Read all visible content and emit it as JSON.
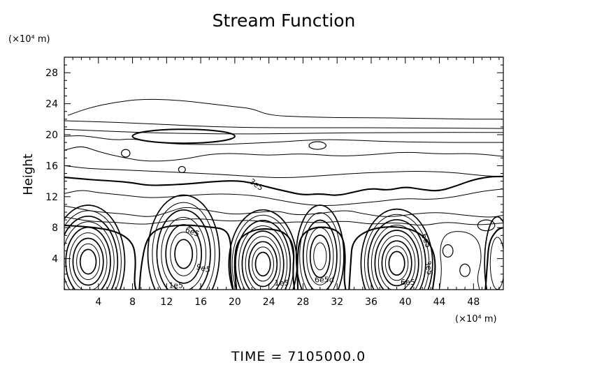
{
  "chart_data": {
    "type": "contour",
    "title": "Stream Function",
    "xlabel": "",
    "ylabel": "Height",
    "x_unit": "(×10⁴ m)",
    "y_unit": "(×10⁴ m)",
    "xlim": [
      0,
      51.5
    ],
    "ylim": [
      0,
      30
    ],
    "xticks": [
      4,
      8,
      12,
      16,
      20,
      24,
      28,
      32,
      36,
      40,
      44,
      48
    ],
    "yticks": [
      4,
      8,
      12,
      16,
      20,
      24,
      28
    ],
    "contour_labels": [
      {
        "text": "3e5",
        "x": 22.5,
        "y": 13.5,
        "angle": 35
      },
      {
        "text": "6e5",
        "x": 15.0,
        "y": 7.4,
        "angle": 20
      },
      {
        "text": "9e5",
        "x": 16.3,
        "y": 2.7,
        "angle": 15
      },
      {
        "text": "1e5",
        "x": 13.1,
        "y": 0.5,
        "angle": 0
      },
      {
        "text": "1e5",
        "x": 25.5,
        "y": 0.8,
        "angle": 0
      },
      {
        "text": "6e5d",
        "x": 30.5,
        "y": 1.2,
        "angle": 0
      },
      {
        "text": "6e5",
        "x": 42.4,
        "y": 6.3,
        "angle": 70
      },
      {
        "text": "3e5",
        "x": 42.7,
        "y": 2.8,
        "angle": 80
      },
      {
        "text": "6e5",
        "x": 40.3,
        "y": 0.9,
        "angle": 0
      }
    ],
    "vortices": [
      {
        "cx": 2.8,
        "cy": 3.6,
        "rx": 4.3,
        "ry": 7.3,
        "rings": 9
      },
      {
        "cx": 14.0,
        "cy": 4.6,
        "rx": 4.2,
        "ry": 7.6,
        "rings": 7
      },
      {
        "cx": 23.3,
        "cy": 3.3,
        "rx": 4.0,
        "ry": 7.0,
        "rings": 9
      },
      {
        "cx": 30.0,
        "cy": 4.3,
        "rx": 2.8,
        "ry": 6.6,
        "rings": 6
      },
      {
        "cx": 39.0,
        "cy": 3.4,
        "rx": 4.2,
        "ry": 7.0,
        "rings": 9
      },
      {
        "cx": 50.8,
        "cy": 3.4,
        "rx": 1.5,
        "ry": 6.0,
        "rings": 2
      }
    ],
    "cells": [
      {
        "cx": 14.0,
        "cy": 19.8,
        "rx": 6.0,
        "ry": 0.9
      },
      {
        "cx": 29.7,
        "cy": 18.6,
        "rx": 1.0,
        "ry": 0.5
      },
      {
        "cx": 13.8,
        "cy": 15.5,
        "rx": 0.4,
        "ry": 0.4
      },
      {
        "cx": 7.2,
        "cy": 17.6,
        "rx": 0.5,
        "ry": 0.5
      },
      {
        "cx": 45.0,
        "cy": 5.0,
        "rx": 0.6,
        "ry": 0.8
      },
      {
        "cx": 47.0,
        "cy": 2.5,
        "rx": 0.6,
        "ry": 0.8
      },
      {
        "cx": 49.5,
        "cy": 8.3,
        "rx": 1.0,
        "ry": 0.7
      }
    ],
    "contours": [
      {
        "weight": "thin",
        "points": [
          [
            0.4,
            22.5
          ],
          [
            3,
            23.5
          ],
          [
            6,
            24.2
          ],
          [
            9,
            24.6
          ],
          [
            13,
            24.5
          ],
          [
            17,
            24.0
          ],
          [
            20,
            23.6
          ],
          [
            22,
            23.4
          ],
          [
            24,
            22.5
          ],
          [
            28,
            22.3
          ],
          [
            32,
            22.2
          ],
          [
            36,
            22.2
          ],
          [
            42,
            22.1
          ],
          [
            48,
            22.0
          ],
          [
            51.5,
            22.0
          ]
        ]
      },
      {
        "weight": "thin",
        "points": [
          [
            0,
            21.8
          ],
          [
            6,
            21.6
          ],
          [
            12,
            21.3
          ],
          [
            18,
            21.0
          ],
          [
            24,
            20.9
          ],
          [
            30,
            20.9
          ],
          [
            40,
            20.9
          ],
          [
            51.5,
            20.8
          ]
        ]
      },
      {
        "weight": "thin",
        "points": [
          [
            0,
            20.7
          ],
          [
            6,
            20.4
          ],
          [
            12,
            20.2
          ],
          [
            18,
            20.1
          ],
          [
            24,
            20.1
          ],
          [
            30,
            20.2
          ],
          [
            40,
            20.3
          ],
          [
            51.5,
            20.3
          ]
        ]
      },
      {
        "weight": "thin",
        "points": [
          [
            0,
            19.8
          ],
          [
            2,
            19.9
          ],
          [
            4,
            19.6
          ],
          [
            6,
            19.3
          ],
          [
            8,
            19.5
          ],
          [
            12,
            18.8
          ],
          [
            18,
            18.7
          ],
          [
            22,
            18.9
          ],
          [
            26,
            19.1
          ],
          [
            30,
            19.4
          ],
          [
            34,
            19.3
          ],
          [
            38,
            19.1
          ],
          [
            44,
            19.0
          ],
          [
            51.5,
            19.0
          ]
        ]
      },
      {
        "weight": "thin",
        "points": [
          [
            0,
            18.0
          ],
          [
            2,
            18.6
          ],
          [
            4,
            17.8
          ],
          [
            7,
            17.0
          ],
          [
            10,
            16.5
          ],
          [
            14,
            16.8
          ],
          [
            17,
            17.5
          ],
          [
            20,
            17.6
          ],
          [
            24,
            17.3
          ],
          [
            28,
            17.6
          ],
          [
            32,
            17.2
          ],
          [
            36,
            17.4
          ],
          [
            40,
            17.8
          ],
          [
            44,
            17.5
          ],
          [
            48,
            17.6
          ],
          [
            51.5,
            17.2
          ]
        ]
      },
      {
        "weight": "thin",
        "points": [
          [
            0,
            16.0
          ],
          [
            3,
            15.6
          ],
          [
            6,
            15.5
          ],
          [
            10,
            15.3
          ],
          [
            14,
            15.1
          ],
          [
            18,
            14.9
          ],
          [
            22,
            14.6
          ],
          [
            26,
            14.4
          ],
          [
            30,
            14.7
          ],
          [
            34,
            15.0
          ],
          [
            38,
            15.2
          ],
          [
            42,
            15.3
          ],
          [
            46,
            15.1
          ],
          [
            49,
            14.7
          ],
          [
            51.5,
            14.6
          ]
        ]
      },
      {
        "weight": "thick",
        "points": [
          [
            0,
            14.5
          ],
          [
            3,
            14.2
          ],
          [
            6,
            14.0
          ],
          [
            8,
            13.8
          ],
          [
            10,
            13.4
          ],
          [
            14,
            13.6
          ],
          [
            17,
            13.9
          ],
          [
            20,
            14.1
          ],
          [
            22,
            13.8
          ],
          [
            24,
            13.2
          ],
          [
            26,
            12.7
          ],
          [
            28,
            12.2
          ],
          [
            30,
            12.4
          ],
          [
            32,
            12.1
          ],
          [
            34,
            12.6
          ],
          [
            36,
            13.1
          ],
          [
            38,
            12.8
          ],
          [
            40,
            13.3
          ],
          [
            42,
            12.9
          ],
          [
            44,
            12.7
          ],
          [
            46,
            13.4
          ],
          [
            48,
            14.2
          ],
          [
            50,
            14.6
          ],
          [
            51.5,
            14.6
          ]
        ]
      },
      {
        "weight": "thin",
        "points": [
          [
            0,
            12.4
          ],
          [
            2,
            12.9
          ],
          [
            4,
            12.5
          ],
          [
            7,
            12.2
          ],
          [
            10,
            11.8
          ],
          [
            14,
            12.1
          ],
          [
            18,
            12.4
          ],
          [
            22,
            12.2
          ],
          [
            25,
            11.6
          ],
          [
            28,
            11.0
          ],
          [
            31,
            10.8
          ],
          [
            34,
            11.1
          ],
          [
            37,
            11.4
          ],
          [
            40,
            11.8
          ],
          [
            43,
            11.6
          ],
          [
            46,
            12.0
          ],
          [
            49,
            12.7
          ],
          [
            51.5,
            13.0
          ]
        ]
      },
      {
        "weight": "thin",
        "points": [
          [
            0,
            10.8
          ],
          [
            2,
            10.4
          ],
          [
            4,
            10.0
          ],
          [
            7,
            9.8
          ],
          [
            10,
            9.3
          ],
          [
            12,
            9.9
          ],
          [
            14,
            10.7
          ],
          [
            16,
            10.4
          ],
          [
            18,
            10.0
          ],
          [
            20,
            9.7
          ],
          [
            22,
            9.9
          ],
          [
            25,
            10.2
          ],
          [
            27,
            9.6
          ],
          [
            30,
            9.8
          ],
          [
            33,
            10.3
          ],
          [
            35,
            9.8
          ],
          [
            38,
            9.3
          ],
          [
            41,
            9.8
          ],
          [
            44,
            10.0
          ],
          [
            47,
            9.6
          ],
          [
            50,
            9.3
          ],
          [
            51.5,
            9.6
          ]
        ]
      },
      {
        "weight": "thin",
        "points": [
          [
            0,
            9.4
          ],
          [
            3,
            8.8
          ],
          [
            6,
            8.7
          ],
          [
            9,
            8.4
          ],
          [
            11,
            8.6
          ],
          [
            13,
            9.0
          ],
          [
            16,
            9.2
          ],
          [
            19,
            8.8
          ],
          [
            22,
            9.0
          ],
          [
            25,
            8.5
          ],
          [
            27,
            8.8
          ],
          [
            30,
            8.6
          ],
          [
            33,
            8.9
          ],
          [
            36,
            8.4
          ],
          [
            39,
            8.7
          ],
          [
            42,
            8.2
          ],
          [
            45,
            8.8
          ],
          [
            48,
            8.3
          ],
          [
            51.5,
            8.6
          ]
        ]
      },
      {
        "weight": "thick",
        "points": [
          [
            0,
            8.3
          ],
          [
            3,
            8.1
          ],
          [
            6,
            7.6
          ],
          [
            8,
            6.2
          ],
          [
            8.4,
            4.0
          ],
          [
            8.2,
            1.0
          ],
          [
            8.4,
            0
          ]
        ]
      },
      {
        "weight": "thick",
        "points": [
          [
            8.8,
            0
          ],
          [
            9.0,
            3.0
          ],
          [
            9.6,
            6.5
          ],
          [
            11,
            8.0
          ],
          [
            14,
            8.4
          ],
          [
            17,
            8.1
          ],
          [
            19,
            7.8
          ],
          [
            19.6,
            6.0
          ],
          [
            19.4,
            3.0
          ],
          [
            19.8,
            0
          ]
        ]
      },
      {
        "weight": "thick",
        "points": [
          [
            20.2,
            0
          ],
          [
            19.9,
            3.5
          ],
          [
            20.3,
            6.4
          ],
          [
            22,
            7.7
          ],
          [
            24,
            7.9
          ],
          [
            26,
            7.4
          ],
          [
            27.0,
            5.5
          ],
          [
            26.8,
            2.0
          ],
          [
            27.0,
            0
          ]
        ]
      },
      {
        "weight": "thick",
        "points": [
          [
            27.4,
            0
          ],
          [
            27.3,
            3.5
          ],
          [
            27.6,
            6.8
          ],
          [
            29,
            8.0
          ],
          [
            31,
            8.1
          ],
          [
            32.6,
            7.2
          ],
          [
            33.0,
            4.5
          ],
          [
            32.8,
            1.5
          ],
          [
            33.0,
            0
          ]
        ]
      },
      {
        "weight": "thick",
        "points": [
          [
            33.4,
            0
          ],
          [
            33.6,
            3.5
          ],
          [
            33.8,
            6.4
          ],
          [
            36,
            7.9
          ],
          [
            39,
            8.2
          ],
          [
            41.6,
            7.5
          ],
          [
            43.2,
            5.5
          ],
          [
            43.6,
            3.0
          ],
          [
            43.2,
            0
          ]
        ]
      },
      {
        "weight": "thin",
        "points": [
          [
            44.0,
            0
          ],
          [
            44.3,
            2.5
          ],
          [
            44.0,
            5.5
          ],
          [
            44.8,
            7.4
          ],
          [
            47,
            7.6
          ],
          [
            48.6,
            6.5
          ],
          [
            49.0,
            4.0
          ],
          [
            48.4,
            1.6
          ],
          [
            48.7,
            0
          ]
        ]
      },
      {
        "weight": "thick",
        "points": [
          [
            49.4,
            0
          ],
          [
            49.6,
            3.0
          ],
          [
            49.8,
            6.2
          ],
          [
            50.8,
            7.8
          ],
          [
            51.5,
            8.0
          ]
        ]
      }
    ]
  },
  "footer": {
    "time_label": "TIME  =  7105000.0"
  }
}
